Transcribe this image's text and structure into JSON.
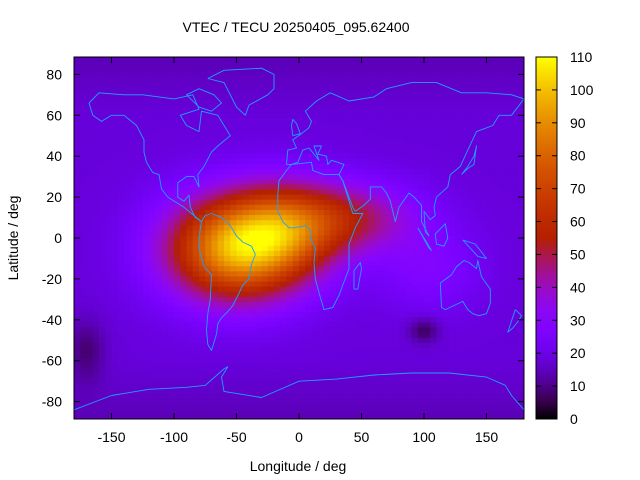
{
  "chart_data": {
    "type": "heatmap",
    "title": "VTEC / TECU 20250405_095.62400",
    "xlabel": "Longitude / deg",
    "ylabel": "Latitude / deg",
    "xlim": [
      -180,
      180
    ],
    "ylim": [
      -88.5,
      88.5
    ],
    "x_ticks": [
      -150,
      -100,
      -50,
      0,
      50,
      100,
      150
    ],
    "y_ticks": [
      -80,
      -60,
      -40,
      -20,
      0,
      20,
      40,
      60,
      80
    ],
    "colorbar": {
      "range": [
        0,
        110
      ],
      "ticks": [
        0,
        10,
        20,
        30,
        40,
        50,
        60,
        70,
        80,
        90,
        100,
        110
      ],
      "palette": "black-purple-red-orange-yellow"
    },
    "grid": {
      "lon_step": 5,
      "lat_step": 2.5
    },
    "field_components": [
      {
        "lon": -50,
        "lat": -5,
        "sigma_lon": 55,
        "sigma_lat": 25,
        "amplitude": 75
      },
      {
        "lon": -10,
        "lat": 5,
        "sigma_lon": 45,
        "sigma_lat": 22,
        "amplitude": 35
      },
      {
        "lon": 40,
        "lat": 10,
        "sigma_lon": 55,
        "sigma_lat": 17,
        "amplitude": 28
      },
      {
        "lon": 105,
        "lat": -15,
        "sigma_lon": 40,
        "sigma_lat": 20,
        "amplitude": 10
      },
      {
        "lon": 100,
        "lat": -45,
        "sigma_lon": 12,
        "sigma_lat": 6,
        "amplitude": -12
      },
      {
        "lon": -170,
        "lat": -55,
        "sigma_lon": 15,
        "sigma_lat": 15,
        "amplitude": -10
      }
    ],
    "background_level": 18,
    "coastlines": [
      {
        "name": "north-america",
        "lonlat": [
          [
            -168,
            66
          ],
          [
            -160,
            71
          ],
          [
            -140,
            70
          ],
          [
            -125,
            70
          ],
          [
            -100,
            68
          ],
          [
            -85,
            70
          ],
          [
            -80,
            63
          ],
          [
            -95,
            60
          ],
          [
            -90,
            55
          ],
          [
            -80,
            52
          ],
          [
            -78,
            62
          ],
          [
            -65,
            60
          ],
          [
            -55,
            50
          ],
          [
            -65,
            45
          ],
          [
            -70,
            42
          ],
          [
            -76,
            35
          ],
          [
            -81,
            31
          ],
          [
            -80,
            25
          ],
          [
            -84,
            30
          ],
          [
            -90,
            30
          ],
          [
            -97,
            27
          ],
          [
            -97,
            20
          ],
          [
            -92,
            18
          ],
          [
            -88,
            21
          ],
          [
            -87,
            15
          ],
          [
            -83,
            10
          ],
          [
            -78,
            8
          ],
          [
            -86,
            12
          ],
          [
            -92,
            15
          ],
          [
            -105,
            20
          ],
          [
            -110,
            24
          ],
          [
            -112,
            31
          ],
          [
            -117,
            32
          ],
          [
            -122,
            37
          ],
          [
            -124,
            42
          ],
          [
            -124,
            48
          ],
          [
            -130,
            55
          ],
          [
            -140,
            60
          ],
          [
            -150,
            60
          ],
          [
            -158,
            57
          ],
          [
            -165,
            60
          ],
          [
            -168,
            66
          ]
        ]
      },
      {
        "name": "south-america",
        "lonlat": [
          [
            -78,
            8
          ],
          [
            -75,
            11
          ],
          [
            -70,
            12
          ],
          [
            -62,
            10
          ],
          [
            -55,
            6
          ],
          [
            -50,
            1
          ],
          [
            -45,
            -2
          ],
          [
            -38,
            -4
          ],
          [
            -35,
            -8
          ],
          [
            -38,
            -13
          ],
          [
            -40,
            -20
          ],
          [
            -45,
            -23
          ],
          [
            -48,
            -27
          ],
          [
            -53,
            -33
          ],
          [
            -57,
            -36
          ],
          [
            -62,
            -39
          ],
          [
            -65,
            -42
          ],
          [
            -66,
            -47
          ],
          [
            -68,
            -51
          ],
          [
            -70,
            -55
          ],
          [
            -73,
            -52
          ],
          [
            -74,
            -45
          ],
          [
            -73,
            -37
          ],
          [
            -71,
            -30
          ],
          [
            -70,
            -18
          ],
          [
            -76,
            -14
          ],
          [
            -80,
            -5
          ],
          [
            -80,
            0
          ],
          [
            -78,
            8
          ]
        ]
      },
      {
        "name": "africa",
        "lonlat": [
          [
            -17,
            21
          ],
          [
            -16,
            28
          ],
          [
            -10,
            33
          ],
          [
            -6,
            36
          ],
          [
            10,
            37
          ],
          [
            11,
            33
          ],
          [
            20,
            31
          ],
          [
            32,
            31
          ],
          [
            35,
            28
          ],
          [
            43,
            12
          ],
          [
            51,
            12
          ],
          [
            45,
            5
          ],
          [
            40,
            -3
          ],
          [
            40,
            -15
          ],
          [
            35,
            -23
          ],
          [
            32,
            -28
          ],
          [
            27,
            -34
          ],
          [
            20,
            -35
          ],
          [
            17,
            -29
          ],
          [
            13,
            -20
          ],
          [
            12,
            -12
          ],
          [
            13,
            -5
          ],
          [
            9,
            0
          ],
          [
            9,
            4
          ],
          [
            5,
            6
          ],
          [
            -4,
            5
          ],
          [
            -8,
            5
          ],
          [
            -13,
            8
          ],
          [
            -17,
            13
          ],
          [
            -17,
            21
          ]
        ]
      },
      {
        "name": "eurasia",
        "lonlat": [
          [
            -10,
            36
          ],
          [
            -9,
            43
          ],
          [
            -2,
            44
          ],
          [
            -5,
            48
          ],
          [
            2,
            51
          ],
          [
            8,
            54
          ],
          [
            10,
            57
          ],
          [
            5,
            62
          ],
          [
            14,
            67
          ],
          [
            25,
            71
          ],
          [
            40,
            67
          ],
          [
            60,
            69
          ],
          [
            70,
            73
          ],
          [
            90,
            76
          ],
          [
            110,
            76
          ],
          [
            130,
            71
          ],
          [
            150,
            71
          ],
          [
            170,
            70
          ],
          [
            180,
            68
          ],
          [
            170,
            60
          ],
          [
            160,
            60
          ],
          [
            155,
            55
          ],
          [
            142,
            52
          ],
          [
            135,
            43
          ],
          [
            129,
            35
          ],
          [
            121,
            31
          ],
          [
            119,
            25
          ],
          [
            110,
            20
          ],
          [
            108,
            15
          ],
          [
            109,
            11
          ],
          [
            105,
            9
          ],
          [
            100,
            13
          ],
          [
            101,
            3
          ],
          [
            104,
            1
          ],
          [
            98,
            8
          ],
          [
            98,
            16
          ],
          [
            92,
            20
          ],
          [
            88,
            22
          ],
          [
            80,
            15
          ],
          [
            77,
            8
          ],
          [
            73,
            18
          ],
          [
            70,
            22
          ],
          [
            66,
            25
          ],
          [
            57,
            25
          ],
          [
            57,
            19
          ],
          [
            52,
            16
          ],
          [
            45,
            13
          ],
          [
            43,
            15
          ],
          [
            35,
            28
          ],
          [
            32,
            31
          ],
          [
            36,
            36
          ],
          [
            26,
            38
          ],
          [
            23,
            36
          ],
          [
            22,
            40
          ],
          [
            15,
            41
          ],
          [
            18,
            45
          ],
          [
            12,
            45
          ],
          [
            16,
            38
          ],
          [
            8,
            44
          ],
          [
            3,
            43
          ],
          [
            -1,
            37
          ],
          [
            -6,
            36
          ],
          [
            -10,
            36
          ]
        ]
      },
      {
        "name": "australia",
        "lonlat": [
          [
            113,
            -22
          ],
          [
            114,
            -34
          ],
          [
            117,
            -35
          ],
          [
            124,
            -33
          ],
          [
            131,
            -31
          ],
          [
            135,
            -35
          ],
          [
            139,
            -37
          ],
          [
            144,
            -38
          ],
          [
            150,
            -37
          ],
          [
            153,
            -32
          ],
          [
            153,
            -25
          ],
          [
            146,
            -19
          ],
          [
            143,
            -11
          ],
          [
            142,
            -15
          ],
          [
            136,
            -12
          ],
          [
            132,
            -11
          ],
          [
            126,
            -14
          ],
          [
            122,
            -18
          ],
          [
            113,
            -22
          ]
        ]
      },
      {
        "name": "antarctica",
        "lonlat": [
          [
            -180,
            -84
          ],
          [
            -150,
            -77
          ],
          [
            -120,
            -74
          ],
          [
            -90,
            -73
          ],
          [
            -75,
            -72
          ],
          [
            -60,
            -64
          ],
          [
            -57,
            -63
          ],
          [
            -62,
            -68
          ],
          [
            -60,
            -75
          ],
          [
            -30,
            -78
          ],
          [
            0,
            -70
          ],
          [
            30,
            -69
          ],
          [
            60,
            -67
          ],
          [
            90,
            -66
          ],
          [
            120,
            -66
          ],
          [
            150,
            -68
          ],
          [
            165,
            -72
          ],
          [
            170,
            -77
          ],
          [
            180,
            -84
          ]
        ]
      },
      {
        "name": "greenland",
        "lonlat": [
          [
            -73,
            78
          ],
          [
            -60,
            82
          ],
          [
            -30,
            83
          ],
          [
            -20,
            80
          ],
          [
            -20,
            73
          ],
          [
            -25,
            70
          ],
          [
            -40,
            65
          ],
          [
            -43,
            60
          ],
          [
            -50,
            64
          ],
          [
            -55,
            70
          ],
          [
            -60,
            76
          ],
          [
            -73,
            78
          ]
        ]
      },
      {
        "name": "madagascar",
        "lonlat": [
          [
            44,
            -25
          ],
          [
            47,
            -25
          ],
          [
            50,
            -15
          ],
          [
            49,
            -12
          ],
          [
            44,
            -16
          ],
          [
            44,
            -25
          ]
        ]
      },
      {
        "name": "britain",
        "lonlat": [
          [
            -5,
            50
          ],
          [
            1,
            51
          ],
          [
            -2,
            56
          ],
          [
            -5,
            58
          ],
          [
            -6,
            55
          ],
          [
            -5,
            50
          ]
        ]
      },
      {
        "name": "japan",
        "lonlat": [
          [
            130,
            31
          ],
          [
            135,
            34
          ],
          [
            140,
            36
          ],
          [
            141,
            41
          ],
          [
            142,
            45
          ],
          [
            140,
            40
          ],
          [
            135,
            35
          ],
          [
            130,
            31
          ]
        ]
      },
      {
        "name": "new-zealand",
        "lonlat": [
          [
            173,
            -35
          ],
          [
            178,
            -38
          ],
          [
            175,
            -41
          ],
          [
            171,
            -44
          ],
          [
            167,
            -46
          ],
          [
            173,
            -35
          ]
        ]
      },
      {
        "name": "borneo",
        "lonlat": [
          [
            109,
            2
          ],
          [
            117,
            7
          ],
          [
            119,
            0
          ],
          [
            116,
            -4
          ],
          [
            110,
            -3
          ],
          [
            109,
            2
          ]
        ]
      },
      {
        "name": "sumatra",
        "lonlat": [
          [
            95,
            5
          ],
          [
            106,
            -6
          ],
          [
            104,
            -5
          ],
          [
            95,
            5
          ]
        ]
      },
      {
        "name": "new-guinea",
        "lonlat": [
          [
            131,
            -1
          ],
          [
            141,
            -3
          ],
          [
            150,
            -10
          ],
          [
            143,
            -9
          ],
          [
            137,
            -5
          ],
          [
            131,
            -1
          ]
        ]
      },
      {
        "name": "baffin",
        "lonlat": [
          [
            -80,
            73
          ],
          [
            -68,
            70
          ],
          [
            -62,
            66
          ],
          [
            -70,
            62
          ],
          [
            -80,
            64
          ],
          [
            -90,
            70
          ],
          [
            -80,
            73
          ]
        ]
      }
    ]
  }
}
